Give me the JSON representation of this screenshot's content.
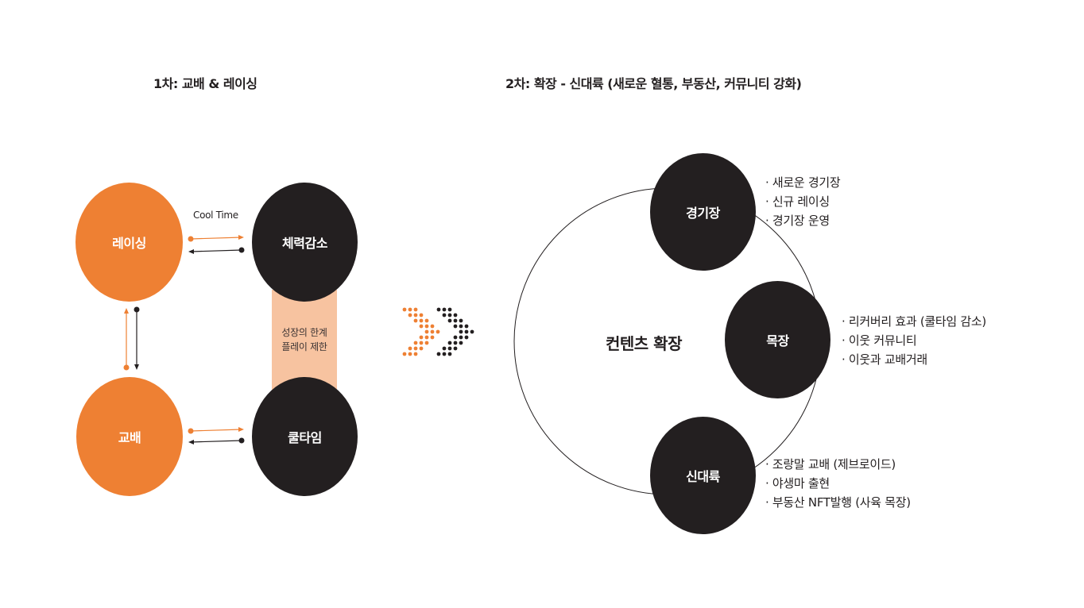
{
  "titles": {
    "phase1": "1차: 교배 & 레이싱",
    "phase2": "2차: 확장 - 신대륙 (새로운 혈통, 부동산, 커뮤니티 강화)"
  },
  "phase1": {
    "nodes": {
      "racing": "레이싱",
      "stamina": "체력감소",
      "breeding": "교배",
      "cooltime": "쿨타임"
    },
    "cool_time_label": "Cool Time",
    "limit_bar_lines": [
      "성장의 한계",
      "플레이 제한"
    ]
  },
  "phase2": {
    "center_label": "컨텐츠 확장",
    "nodes": {
      "arena": "경기장",
      "ranch": "목장",
      "new_continent": "신대륙"
    },
    "arena_items": [
      "· 새로운 경기장",
      "· 신규 레이싱",
      "· 경기장 운영"
    ],
    "ranch_items": [
      "· 리커버리 효과 (쿨타임 감소)",
      "· 이웃 커뮤니티",
      "· 이웃과 교배거래"
    ],
    "continent_items": [
      "· 조랑말 교배 (제브로이드)",
      "· 야생마 출현",
      "· 부동산 NFT발행 (사육 목장)"
    ]
  },
  "colors": {
    "orange": "#ee8033",
    "dark": "#231f20",
    "bar": "#f7c3a0"
  }
}
